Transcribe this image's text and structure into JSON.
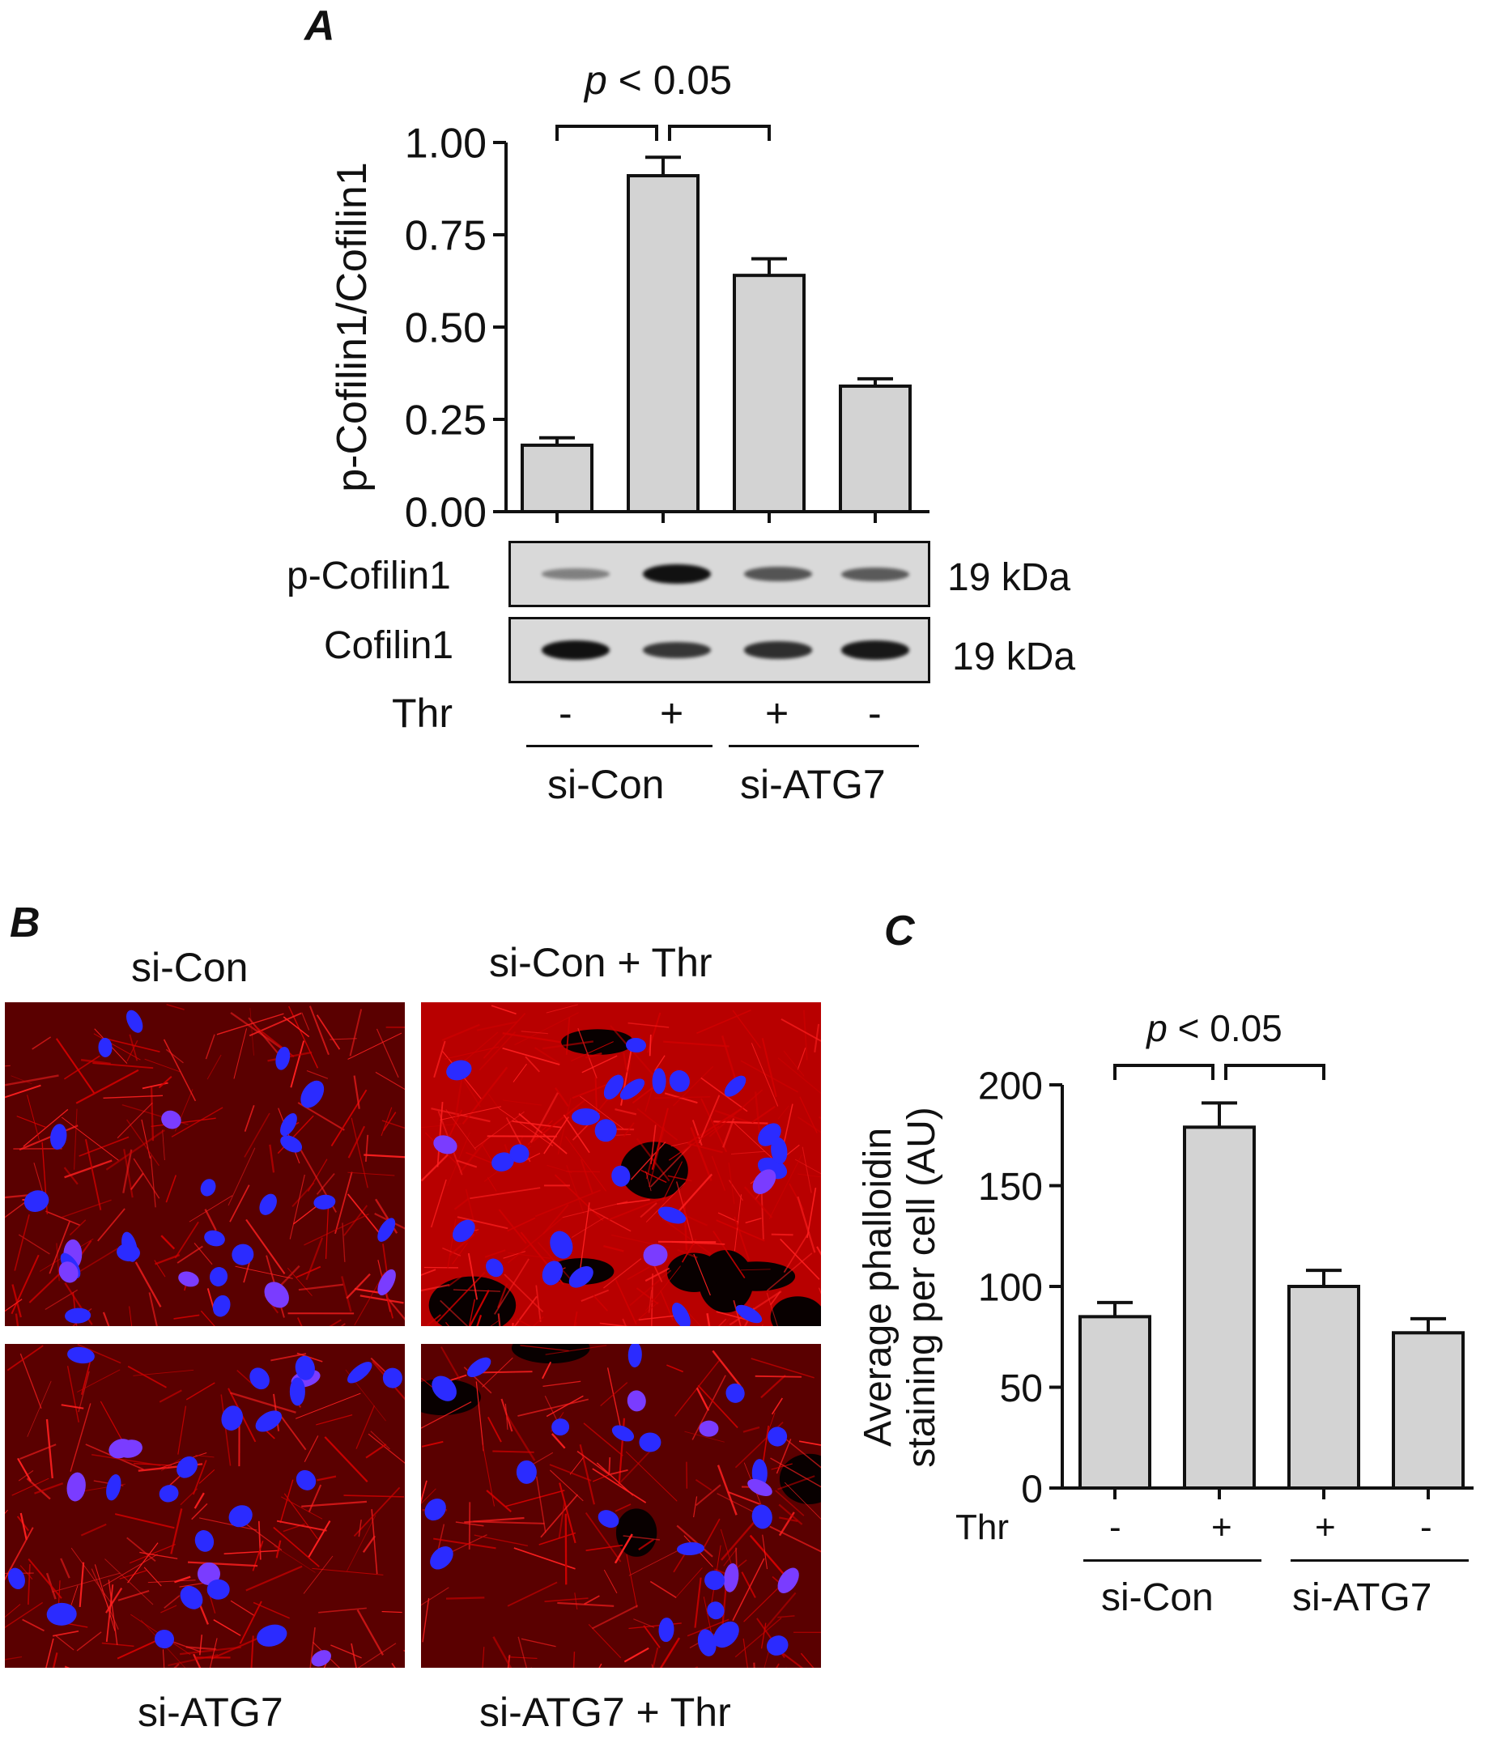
{
  "panels": {
    "a": {
      "label": "A"
    },
    "b": {
      "label": "B"
    },
    "c": {
      "label": "C"
    }
  },
  "chart_data": [
    {
      "type": "bar",
      "panel": "A",
      "ylabel": "p-Cofilin1/Cofilin1",
      "ylim": [
        0,
        1.0
      ],
      "yticks": [
        "0.00",
        "0.25",
        "0.50",
        "0.75",
        "1.00"
      ],
      "ytick_values": [
        0,
        0.25,
        0.5,
        0.75,
        1.0
      ],
      "values": [
        0.18,
        0.91,
        0.64,
        0.34
      ],
      "errors": [
        0.02,
        0.05,
        0.045,
        0.02
      ],
      "bar_color": "#d3d3d3",
      "significance": {
        "p": "p",
        "rest": " < 0.05"
      }
    },
    {
      "type": "bar",
      "panel": "C",
      "ylabel_line1": "Average phalloidin",
      "ylabel_line2": "staining per cell (AU)",
      "ylim": [
        0,
        200
      ],
      "yticks": [
        "0",
        "50",
        "100",
        "150",
        "200"
      ],
      "ytick_values": [
        0,
        50,
        100,
        150,
        200
      ],
      "values": [
        85,
        179,
        100,
        77
      ],
      "errors": [
        7,
        12,
        8,
        7
      ],
      "bar_color": "#d3d3d3",
      "significance": {
        "p": "p",
        "rest": " < 0.05"
      }
    }
  ],
  "treatment": {
    "thr_label": "Thr",
    "thr_signs": [
      "-",
      "+",
      "+",
      "-"
    ],
    "group1": "si-Con",
    "group2": "si-ATG7"
  },
  "blot": {
    "row1_label": "p-Cofilin1",
    "row1_size": "19 kDa",
    "row1_intensity": [
      0.25,
      1.0,
      0.55,
      0.5
    ],
    "row2_label": "Cofilin1",
    "row2_size": "19 kDa",
    "row2_intensity": [
      1.0,
      0.75,
      0.8,
      0.95
    ]
  },
  "micrographs": {
    "top_left": "si-Con",
    "top_right": "si-Con + Thr",
    "bottom_left": "si-ATG7",
    "bottom_right": "si-ATG7 + Thr"
  }
}
